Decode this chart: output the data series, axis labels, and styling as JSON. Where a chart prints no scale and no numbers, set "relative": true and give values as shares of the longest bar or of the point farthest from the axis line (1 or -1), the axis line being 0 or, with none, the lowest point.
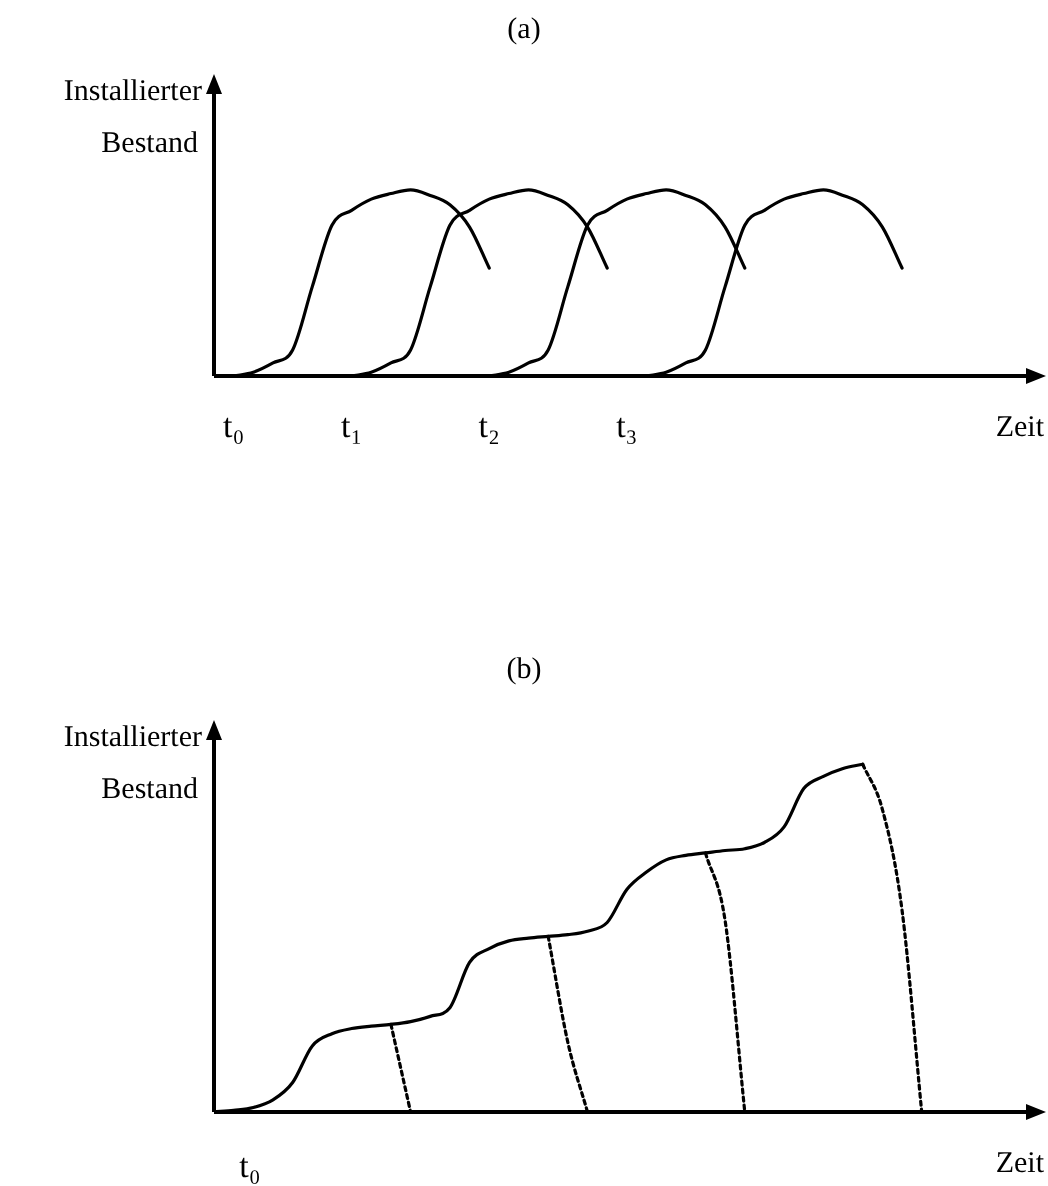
{
  "chart_data": [
    {
      "type": "line",
      "title": "(a)",
      "xlabel": "Zeit",
      "ylabel": "Installierter Bestand",
      "relative": true,
      "marker": "none",
      "categories": [
        null,
        "t₀",
        null,
        null,
        null,
        null,
        null,
        "t₁",
        null,
        null,
        null,
        null,
        null,
        null,
        "t₂",
        null,
        null,
        null,
        null,
        null,
        null,
        "t₃",
        null,
        null,
        null,
        null,
        null,
        null,
        null,
        null,
        null,
        null,
        null,
        null,
        null,
        null,
        null,
        null,
        null,
        null,
        null,
        null
      ],
      "series": [
        {
          "color": "#000000",
          "line_style": "solid",
          "values": [
            null,
            0,
            0.02,
            0.07,
            0.14,
            0.48,
            0.81,
            0.89,
            0.95,
            0.98,
            1.0,
            0.97,
            0.92,
            0.8,
            0.58,
            null,
            null,
            null,
            null,
            null,
            null,
            null,
            null,
            null,
            null,
            null,
            null,
            null,
            null,
            null,
            null,
            null,
            null,
            null,
            null,
            null,
            null,
            null,
            null,
            null,
            null,
            null
          ]
        },
        {
          "color": "#000000",
          "line_style": "solid",
          "values": [
            null,
            null,
            null,
            null,
            null,
            null,
            null,
            0,
            0.02,
            0.07,
            0.14,
            0.48,
            0.81,
            0.89,
            0.95,
            0.98,
            1.0,
            0.97,
            0.92,
            0.8,
            0.58,
            null,
            null,
            null,
            null,
            null,
            null,
            null,
            null,
            null,
            null,
            null,
            null,
            null,
            null,
            null,
            null,
            null,
            null,
            null,
            null,
            null
          ]
        },
        {
          "color": "#000000",
          "line_style": "solid",
          "values": [
            null,
            null,
            null,
            null,
            null,
            null,
            null,
            null,
            null,
            null,
            null,
            null,
            null,
            null,
            0,
            0.02,
            0.07,
            0.14,
            0.48,
            0.81,
            0.89,
            0.95,
            0.98,
            1.0,
            0.97,
            0.92,
            0.8,
            0.58,
            null,
            null,
            null,
            null,
            null,
            null,
            null,
            null,
            null,
            null,
            null,
            null,
            null,
            null
          ]
        },
        {
          "color": "#000000",
          "line_style": "solid",
          "values": [
            null,
            null,
            null,
            null,
            null,
            null,
            null,
            null,
            null,
            null,
            null,
            null,
            null,
            null,
            null,
            null,
            null,
            null,
            null,
            null,
            null,
            null,
            0,
            0.02,
            0.07,
            0.14,
            0.48,
            0.81,
            0.89,
            0.95,
            0.98,
            1.0,
            0.97,
            0.92,
            0.8,
            0.58,
            null,
            null,
            null,
            null,
            null,
            null
          ]
        }
      ]
    },
    {
      "type": "line",
      "title": "(b)",
      "xlabel": "Zeit",
      "ylabel": "Installierter Bestand",
      "relative": true,
      "marker": "none",
      "annotations": [
        "t₀"
      ],
      "categories": [
        null,
        null,
        null,
        null,
        null,
        null,
        null,
        null,
        null,
        null,
        null,
        null,
        null,
        null,
        null,
        null,
        null,
        null,
        null,
        null,
        null,
        null,
        null,
        null,
        null,
        null,
        null,
        null,
        null,
        null,
        null,
        null,
        null,
        null,
        null,
        null,
        null,
        null,
        null,
        null,
        null,
        null
      ],
      "series": [
        {
          "color": "#000000",
          "line_style": "solid",
          "values": [
            0,
            0.005,
            0.013,
            0.035,
            0.085,
            0.19,
            0.225,
            0.24,
            0.247,
            0.252,
            0.26,
            0.275,
            0.3,
            0.43,
            0.47,
            0.492,
            0.5,
            0.505,
            0.51,
            0.52,
            0.545,
            0.64,
            0.69,
            0.725,
            0.738,
            0.745,
            0.752,
            0.757,
            0.775,
            0.82,
            0.93,
            0.965,
            0.988,
            1.0,
            null,
            null,
            null,
            null,
            null,
            null,
            null,
            null
          ]
        },
        {
          "color": "#000000",
          "line_style": "dotted",
          "values": [
            null,
            null,
            null,
            null,
            null,
            null,
            null,
            null,
            null,
            0.252,
            0,
            null,
            null,
            null,
            null,
            null,
            null,
            null,
            null,
            null,
            null,
            null,
            null,
            null,
            null,
            null,
            null,
            null,
            null,
            null,
            null,
            null,
            null,
            null,
            null,
            null,
            null,
            null,
            null,
            null,
            null,
            null
          ]
        },
        {
          "color": "#000000",
          "line_style": "dotted",
          "values": [
            null,
            null,
            null,
            null,
            null,
            null,
            null,
            null,
            null,
            null,
            null,
            null,
            null,
            null,
            null,
            null,
            null,
            0.505,
            0.2,
            0,
            null,
            null,
            null,
            null,
            null,
            null,
            null,
            null,
            null,
            null,
            null,
            null,
            null,
            null,
            null,
            null,
            null,
            null,
            null,
            null,
            null,
            null
          ]
        },
        {
          "color": "#000000",
          "line_style": "dotted",
          "values": [
            null,
            null,
            null,
            null,
            null,
            null,
            null,
            null,
            null,
            null,
            null,
            null,
            null,
            null,
            null,
            null,
            null,
            null,
            null,
            null,
            null,
            null,
            null,
            null,
            null,
            0.745,
            0.55,
            0,
            null,
            null,
            null,
            null,
            null,
            null,
            null,
            null,
            null,
            null,
            null,
            null,
            null,
            null
          ]
        },
        {
          "color": "#000000",
          "line_style": "dotted",
          "values": [
            null,
            null,
            null,
            null,
            null,
            null,
            null,
            null,
            null,
            null,
            null,
            null,
            null,
            null,
            null,
            null,
            null,
            null,
            null,
            null,
            null,
            null,
            null,
            null,
            null,
            null,
            null,
            null,
            null,
            null,
            null,
            null,
            null,
            1.0,
            0.87,
            0.58,
            0,
            null,
            null,
            null,
            null,
            null
          ]
        }
      ]
    }
  ]
}
